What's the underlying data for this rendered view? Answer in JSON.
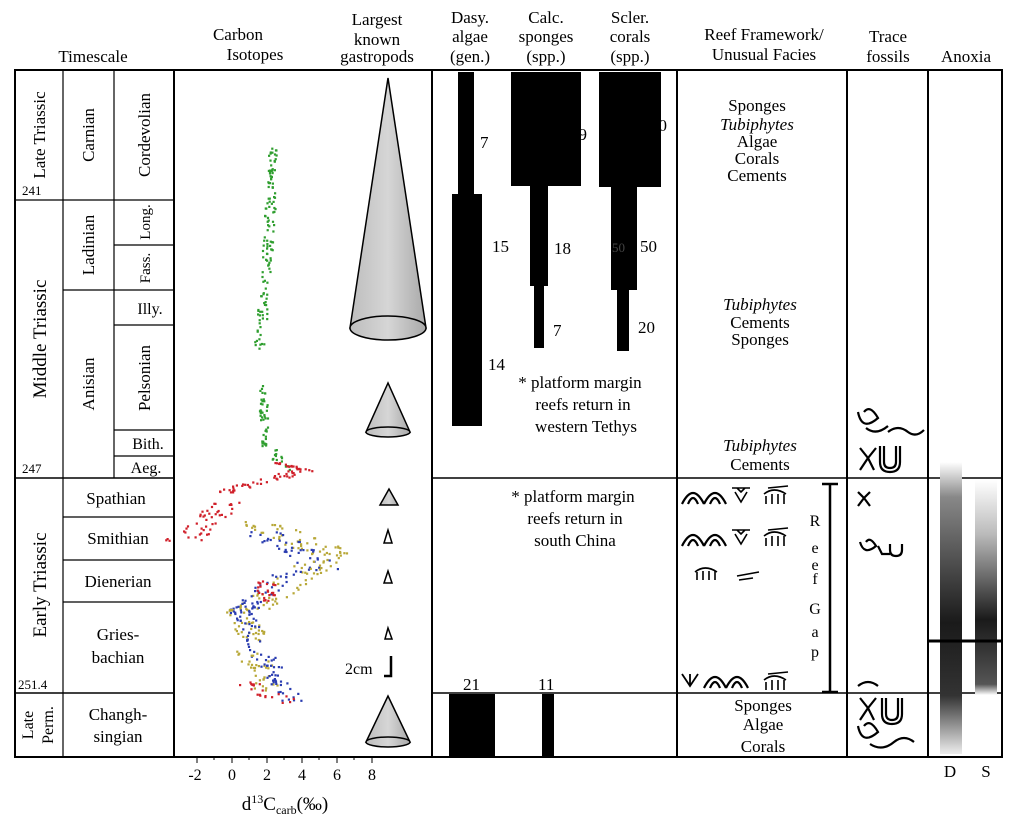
{
  "headers": {
    "timescale": "Timescale",
    "carbon_isotopes": [
      "Carbon",
      "Isotopes"
    ],
    "gastropods": [
      "Largest",
      "known",
      "gastropods"
    ],
    "dasy_algae": [
      "Dasy.",
      "algae",
      "(gen.)"
    ],
    "calc_sponges": [
      "Calc.",
      "sponges",
      "(spp.)"
    ],
    "scler_corals": [
      "Scler.",
      "corals",
      "(spp.)"
    ],
    "reef_framework": [
      "Reef Framework/",
      "Unusual Facies"
    ],
    "trace_fossils": [
      "Trace",
      "fossils"
    ],
    "anoxia": "Anoxia"
  },
  "epochs": {
    "late_triassic": "Late Triassic",
    "middle_triassic": "Middle Triassic",
    "early_triassic": "Early Triassic",
    "late_perm": [
      "Late",
      "Perm."
    ]
  },
  "ages_ma": [
    "241",
    "247",
    "251.4"
  ],
  "stages": {
    "carnian": "Carnian",
    "ladinian": "Ladinian",
    "anisian": "Anisian",
    "cordevolian": "Cordevolian",
    "long": "Long.",
    "fass": "Fass.",
    "illy": "Illy.",
    "pelsonian": "Pelsonian",
    "bith": "Bith.",
    "aeg": "Aeg.",
    "spathian": "Spathian",
    "smithian": "Smithian",
    "dienerian": "Dienerian",
    "griesbachian": [
      "Gries-",
      "bachian"
    ],
    "changhsingian": [
      "Changh-",
      "singian"
    ]
  },
  "dasy_counts": [
    "7",
    "15",
    "14",
    "21"
  ],
  "sponge_counts": [
    "39",
    "18",
    "7",
    "11"
  ],
  "coral_counts": [
    "90",
    "50",
    "50",
    "20"
  ],
  "notes": {
    "western_tethys": [
      "* platform margin",
      "reefs return in",
      "western Tethys"
    ],
    "south_china": [
      "* platform margin",
      "reefs return in",
      "south China"
    ]
  },
  "reef_facies": {
    "late_triassic": [
      "Sponges",
      "Tubiphytes",
      "Algae",
      "Corals",
      "Cements"
    ],
    "middle_1": [
      "Tubiphytes",
      "Cements",
      "Sponges"
    ],
    "middle_2": [
      "Tubiphytes",
      "Cements"
    ],
    "perm": [
      "Sponges",
      "Algae",
      "Corals"
    ]
  },
  "reef_gap": [
    "R",
    "e",
    "e",
    "f",
    "G",
    "a",
    "p"
  ],
  "scale_bar": "2cm",
  "anoxia_labels": [
    "D",
    "S"
  ],
  "x_axis": {
    "ticks": [
      "-2",
      "0",
      "2",
      "4",
      "6",
      "8"
    ],
    "label_main": "d",
    "label_sup": "13",
    "label_c": "C",
    "label_sub": "carb",
    "label_unit": "(‰)"
  },
  "colors": {
    "green": "#2f9e2f",
    "red": "#d0202a",
    "yellow": "#b8a838",
    "blue": "#2a3cb0",
    "cone_fill": "#c8c8c8"
  }
}
